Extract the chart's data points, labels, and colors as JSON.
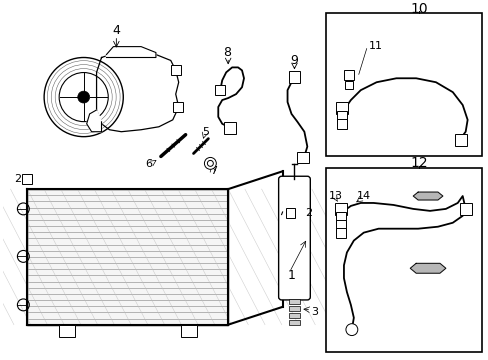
{
  "bg_color": "#ffffff",
  "lc": "#000000",
  "fig_w": 4.89,
  "fig_h": 3.6,
  "dpi": 100,
  "pw": 489,
  "ph": 360
}
